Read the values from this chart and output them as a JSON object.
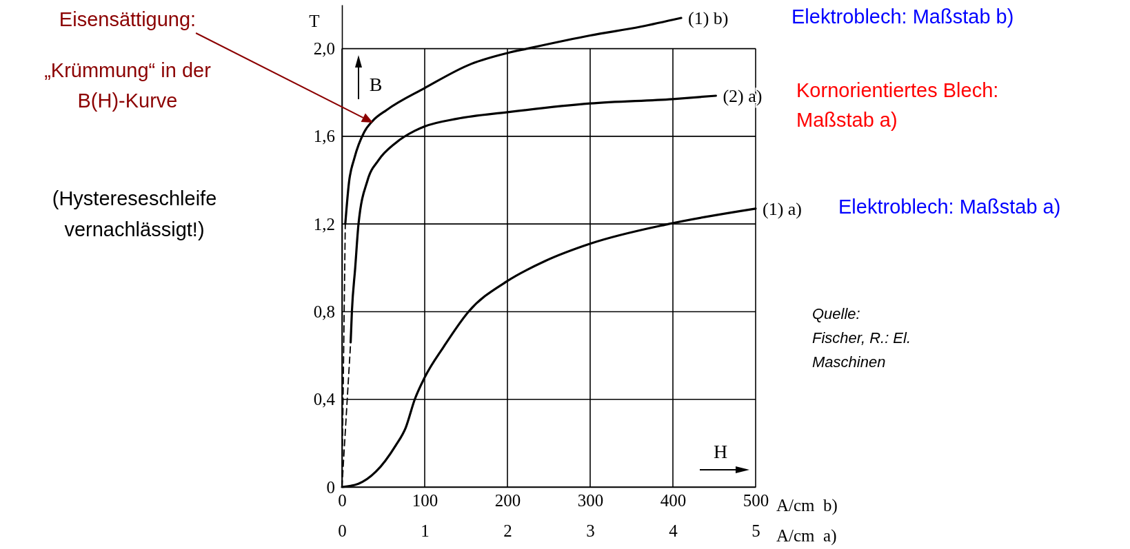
{
  "chart_data": {
    "type": "line",
    "ylabel": "T",
    "xlabel": "A/cm  b)",
    "x2label": "A/cm  a)",
    "xlim": [
      0,
      500
    ],
    "xticks": [
      0,
      100,
      200,
      300,
      400,
      500
    ],
    "x2lim": [
      0,
      5
    ],
    "x2ticks": [
      0,
      1,
      2,
      3,
      4,
      5
    ],
    "ylim": [
      0,
      2.2
    ],
    "yticks": [
      0,
      {
        "value": 0.4,
        "label": "0,4"
      },
      {
        "value": 0.8,
        "label": "0,8"
      },
      {
        "value": 1.2,
        "label": "1,2"
      },
      {
        "value": 1.6,
        "label": "1,6"
      },
      {
        "value": 2.0,
        "label": "2,0"
      }
    ],
    "grid": true,
    "legend": false,
    "marker": "none",
    "line_style": "solid",
    "series": [
      {
        "name": "(1) b)",
        "color": "#000000",
        "x": [
          4,
          8.5,
          15,
          27,
          37,
          54,
          100,
          156,
          200,
          224,
          300,
          361,
          410
        ],
        "values": [
          1.2,
          1.39,
          1.5,
          1.62,
          1.67,
          1.72,
          1.82,
          1.93,
          1.98,
          2.0,
          2.06,
          2.1,
          2.14
        ]
      },
      {
        "name": "(2) a)",
        "color": "#000000",
        "axis": "x2",
        "x": [
          0.105,
          0.12,
          0.16,
          0.2,
          0.31,
          0.44,
          0.65,
          0.88,
          1.0,
          1.39,
          2.0,
          3.0,
          4.0,
          4.52
        ],
        "values": [
          0.66,
          0.8,
          1.0,
          1.2,
          1.4,
          1.49,
          1.57,
          1.625,
          1.645,
          1.68,
          1.71,
          1.75,
          1.77,
          1.785
        ]
      },
      {
        "name": "(1) a)",
        "color": "#000000",
        "axis": "x2",
        "x": [
          0,
          0.2,
          0.41,
          0.65,
          0.77,
          0.88,
          1.0,
          1.23,
          1.53,
          2.0,
          2.45,
          3.0,
          3.95,
          5.0
        ],
        "values": [
          0,
          0.015,
          0.07,
          0.19,
          0.27,
          0.4,
          0.5,
          0.64,
          0.8,
          0.94,
          1.03,
          1.11,
          1.2,
          1.27
        ]
      },
      {
        "color": "#000000",
        "line_style": "dashed",
        "x": [
          0,
          4
        ],
        "values": [
          0,
          1.2
        ]
      },
      {
        "color": "#000000",
        "line_style": "dashed",
        "axis": "x2",
        "x": [
          0,
          0.105
        ],
        "values": [
          0,
          0.66
        ]
      }
    ],
    "annotations": [
      "Eisensättigung:",
      "„Krümmung“ in der B(H)-Kurve",
      "(Hystereseschleife vernachlässigt!)",
      "Elektroblech: Maßstab b)",
      "Kornorientiertes Blech: Maßstab a)",
      "Elektroblech: Maßstab a)",
      "Quelle: Fischer, R.: El. Maschinen",
      "B",
      "H"
    ]
  }
}
